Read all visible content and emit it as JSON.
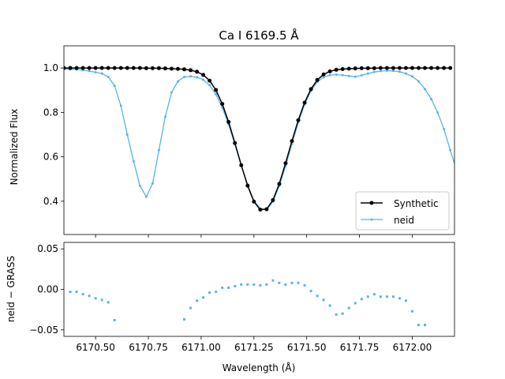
{
  "chart_data": [
    {
      "type": "line",
      "title": "Ca I 6169.5 Å",
      "ylabel": "Normalized Flux",
      "xlim": [
        6170.35,
        6172.2
      ],
      "ylim": [
        0.25,
        1.1
      ],
      "yticks": [
        0.4,
        0.6,
        0.8,
        1.0
      ],
      "ytick_labels": [
        "0.4",
        "0.6",
        "0.8",
        "1.0"
      ],
      "legend_location": "lower-right",
      "series": [
        {
          "name": "Synthetic",
          "color": "#000000",
          "marker": "circle",
          "x": [
            6170.35,
            6170.38,
            6170.41,
            6170.44,
            6170.47,
            6170.5,
            6170.53,
            6170.56,
            6170.59,
            6170.62,
            6170.65,
            6170.68,
            6170.71,
            6170.74,
            6170.77,
            6170.8,
            6170.83,
            6170.86,
            6170.89,
            6170.92,
            6170.95,
            6170.98,
            6171.01,
            6171.04,
            6171.07,
            6171.1,
            6171.13,
            6171.16,
            6171.19,
            6171.22,
            6171.25,
            6171.28,
            6171.31,
            6171.34,
            6171.37,
            6171.4,
            6171.43,
            6171.46,
            6171.49,
            6171.52,
            6171.55,
            6171.58,
            6171.61,
            6171.64,
            6171.67,
            6171.7,
            6171.73,
            6171.76,
            6171.79,
            6171.82,
            6171.85,
            6171.88,
            6171.91,
            6171.94,
            6171.97,
            6172.0,
            6172.03,
            6172.06,
            6172.09,
            6172.12,
            6172.15,
            6172.18
          ],
          "y": [
            1.0,
            1.0,
            1.0,
            1.0,
            1.0,
            1.0,
            1.0,
            1.0,
            1.0,
            1.0,
            1.0,
            1.0,
            1.0,
            0.999,
            0.999,
            0.999,
            0.998,
            0.997,
            0.996,
            0.994,
            0.99,
            0.983,
            0.969,
            0.943,
            0.901,
            0.838,
            0.757,
            0.662,
            0.562,
            0.47,
            0.398,
            0.362,
            0.364,
            0.405,
            0.478,
            0.571,
            0.671,
            0.765,
            0.844,
            0.905,
            0.946,
            0.971,
            0.985,
            0.992,
            0.995,
            0.997,
            0.998,
            0.999,
            0.999,
            0.999,
            1.0,
            1.0,
            1.0,
            1.0,
            1.0,
            1.0,
            1.0,
            1.0,
            1.0,
            1.0,
            1.0,
            1.0
          ]
        },
        {
          "name": "neid",
          "color": "#56b4e9",
          "marker": "dot",
          "x": [
            6170.35,
            6170.38,
            6170.41,
            6170.44,
            6170.47,
            6170.5,
            6170.53,
            6170.56,
            6170.59,
            6170.62,
            6170.65,
            6170.68,
            6170.71,
            6170.74,
            6170.77,
            6170.8,
            6170.83,
            6170.86,
            6170.89,
            6170.92,
            6170.95,
            6170.98,
            6171.01,
            6171.04,
            6171.07,
            6171.1,
            6171.13,
            6171.16,
            6171.19,
            6171.22,
            6171.25,
            6171.28,
            6171.31,
            6171.34,
            6171.37,
            6171.4,
            6171.43,
            6171.46,
            6171.49,
            6171.52,
            6171.55,
            6171.58,
            6171.61,
            6171.64,
            6171.67,
            6171.7,
            6171.73,
            6171.76,
            6171.79,
            6171.82,
            6171.85,
            6171.88,
            6171.91,
            6171.94,
            6171.97,
            6172.0,
            6172.03,
            6172.06,
            6172.09,
            6172.12,
            6172.15,
            6172.18,
            6172.21
          ],
          "y": [
            0.995,
            0.994,
            0.993,
            0.99,
            0.986,
            0.981,
            0.975,
            0.96,
            0.92,
            0.83,
            0.7,
            0.58,
            0.47,
            0.42,
            0.48,
            0.63,
            0.78,
            0.89,
            0.94,
            0.96,
            0.962,
            0.958,
            0.947,
            0.923,
            0.882,
            0.822,
            0.746,
            0.655,
            0.56,
            0.474,
            0.402,
            0.366,
            0.362,
            0.398,
            0.468,
            0.558,
            0.658,
            0.754,
            0.836,
            0.897,
            0.937,
            0.958,
            0.968,
            0.97,
            0.968,
            0.964,
            0.961,
            0.967,
            0.975,
            0.982,
            0.986,
            0.988,
            0.987,
            0.983,
            0.975,
            0.962,
            0.94,
            0.905,
            0.86,
            0.8,
            0.725,
            0.63,
            0.54
          ]
        }
      ]
    },
    {
      "type": "scatter",
      "xlabel": "Wavelength (Å)",
      "ylabel": "neid  −  GRASS",
      "xlim": [
        6170.35,
        6172.2
      ],
      "ylim": [
        -0.058,
        0.058
      ],
      "yticks": [
        -0.05,
        0.0,
        0.05
      ],
      "ytick_labels": [
        "−0.05",
        "0.00",
        "0.05"
      ],
      "xticks": [
        6170.5,
        6170.75,
        6171.0,
        6171.25,
        6171.5,
        6171.75,
        6172.0
      ],
      "xtick_labels": [
        "6170.50",
        "6170.75",
        "6171.00",
        "6171.25",
        "6171.50",
        "6171.75",
        "6172.00"
      ],
      "series": [
        {
          "name": "neid",
          "color": "#56b4e9",
          "marker": "square",
          "x": [
            6170.38,
            6170.41,
            6170.44,
            6170.47,
            6170.5,
            6170.53,
            6170.56,
            6170.59,
            6170.92,
            6170.95,
            6170.98,
            6171.01,
            6171.04,
            6171.07,
            6171.1,
            6171.13,
            6171.16,
            6171.19,
            6171.22,
            6171.25,
            6171.28,
            6171.31,
            6171.34,
            6171.37,
            6171.4,
            6171.43,
            6171.46,
            6171.49,
            6171.52,
            6171.55,
            6171.58,
            6171.61,
            6171.64,
            6171.67,
            6171.7,
            6171.73,
            6171.76,
            6171.79,
            6171.82,
            6171.85,
            6171.88,
            6171.91,
            6171.94,
            6171.97,
            6172.0,
            6172.03,
            6172.06
          ],
          "y": [
            -0.003,
            -0.003,
            -0.006,
            -0.008,
            -0.011,
            -0.013,
            -0.016,
            -0.038,
            -0.037,
            -0.023,
            -0.014,
            -0.01,
            -0.004,
            -0.003,
            0.002,
            0.002,
            0.004,
            0.006,
            0.006,
            0.006,
            0.005,
            0.006,
            0.011,
            0.008,
            0.006,
            0.008,
            0.008,
            0.005,
            -0.002,
            -0.008,
            -0.013,
            -0.02,
            -0.031,
            -0.03,
            -0.023,
            -0.017,
            -0.012,
            -0.009,
            -0.006,
            -0.009,
            -0.009,
            -0.009,
            -0.011,
            -0.014,
            -0.027,
            -0.044,
            -0.044
          ]
        }
      ]
    }
  ]
}
